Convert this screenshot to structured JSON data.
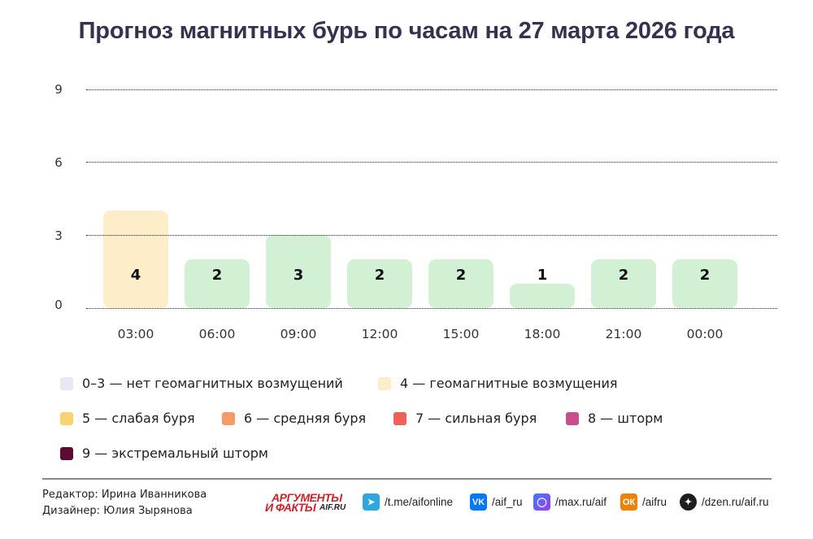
{
  "title": "Прогноз магнитных бурь по часам на 27 марта 2026 года",
  "chart_data": {
    "type": "bar",
    "title": "Прогноз магнитных бурь по часам на 27 марта 2026 года",
    "xlabel": "",
    "ylabel": "",
    "ylim": [
      0,
      9
    ],
    "yticks": [
      "0",
      "3",
      "6",
      "9"
    ],
    "grid": true,
    "categories": [
      "03:00",
      "06:00",
      "09:00",
      "12:00",
      "15:00",
      "18:00",
      "21:00",
      "00:00"
    ],
    "values": [
      4,
      2,
      3,
      2,
      2,
      1,
      2,
      2
    ],
    "value_labels": [
      "4",
      "2",
      "3",
      "2",
      "2",
      "1",
      "2",
      "2"
    ],
    "bar_colors": [
      "#fdeec9",
      "#d1f0d4",
      "#d1f0d4",
      "#d1f0d4",
      "#d1f0d4",
      "#d1f0d4",
      "#d1f0d4",
      "#d1f0d4"
    ],
    "legend_position": "bottom",
    "legend": [
      {
        "label": "0–3 — нет геомагнитных возмущений",
        "color": "#e6e9f3"
      },
      {
        "label": "4 — геомагнитные возмущения",
        "color": "#fdeec9"
      },
      {
        "label": "5 — слабая буря",
        "color": "#f8d46e"
      },
      {
        "label": "6 — средняя буря",
        "color": "#f79a68"
      },
      {
        "label": "7 — сильная буря",
        "color": "#ee6058"
      },
      {
        "label": "8 — шторм",
        "color": "#c84f8a"
      },
      {
        "label": "9 — экстремальный шторм",
        "color": "#5e0b34"
      }
    ]
  },
  "footer": {
    "editor": "Редактор: Ирина Иванникова",
    "designer": "Дизайнер: Юлия Зырянова",
    "logo": {
      "line1": "АРГУМЕНТЫ",
      "line2": "И ФАКТЫ",
      "site": "AIF.RU"
    },
    "socials": [
      {
        "icon": "telegram-icon",
        "glyph": "➤",
        "label": "/t.me/aifonline",
        "color": "#2ea6df"
      },
      {
        "icon": "vk-icon",
        "glyph": "VK",
        "label": "/aif_ru",
        "color": "#0077ff"
      },
      {
        "icon": "max-icon",
        "glyph": "◯",
        "label": "/max.ru/aif",
        "color": "#6a3cf0"
      },
      {
        "icon": "odnoklassniki-icon",
        "glyph": "ОК",
        "label": "/aifru",
        "color": "#ee8208"
      },
      {
        "icon": "dzen-icon",
        "glyph": "✦",
        "label": "/dzen.ru/aif.ru",
        "color": "#1e1e1e"
      }
    ]
  }
}
